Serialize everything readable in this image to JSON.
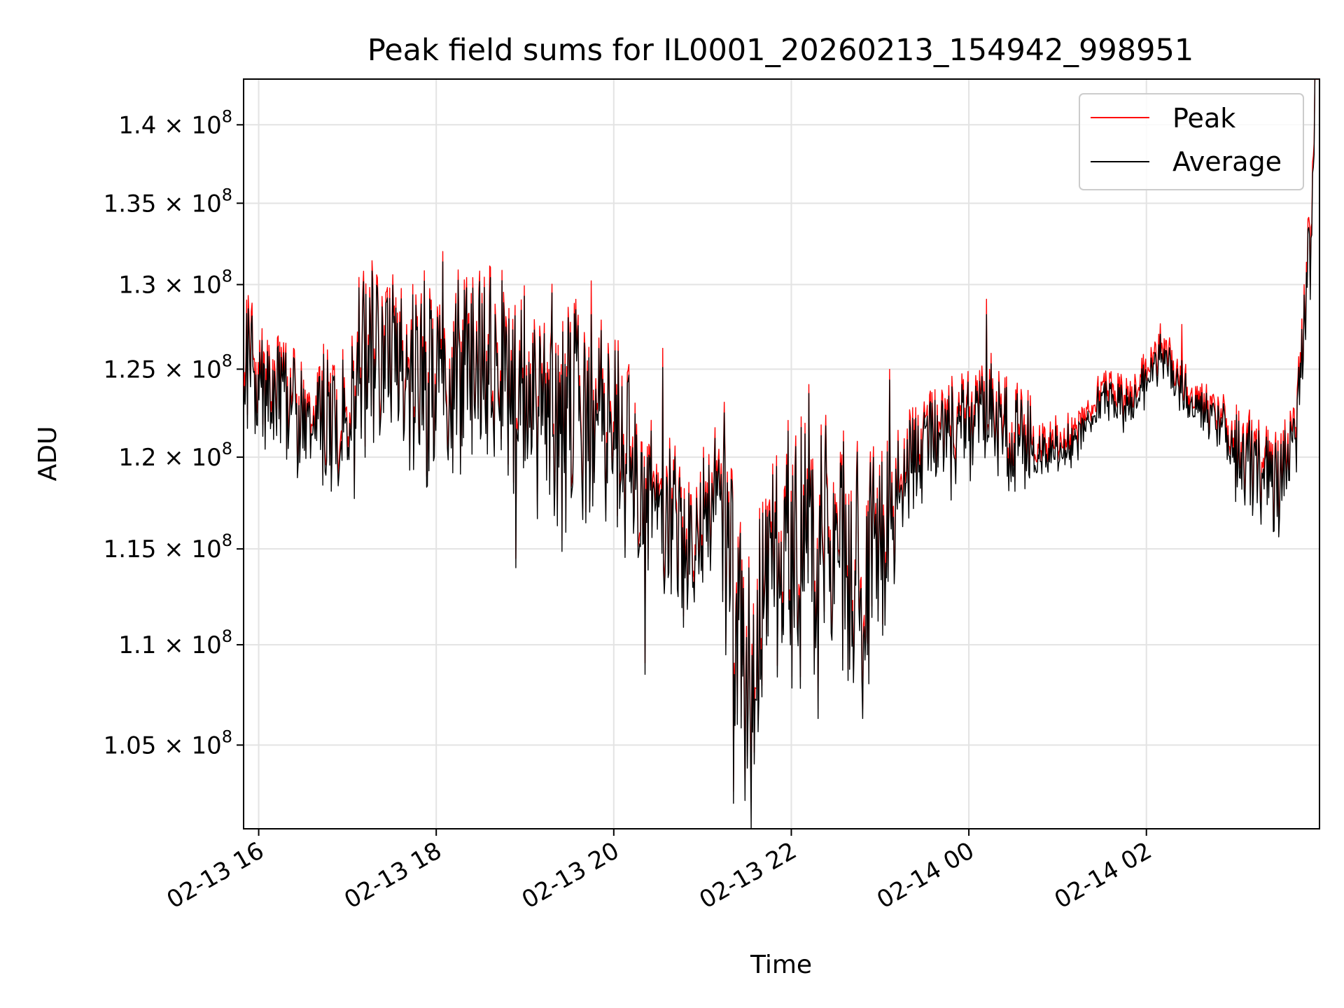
{
  "chart_data": {
    "type": "line",
    "title": "Peak field sums for IL0001_20260213_154942_998951",
    "xlabel": "Time",
    "ylabel": "ADU",
    "yscale": "log",
    "grid": true,
    "legend_position": "upper right",
    "xlim_hours": [
      15.83,
      3.95
    ],
    "ylim": [
      101000000,
      143000000
    ],
    "x_ticks": [
      {
        "hour": 16,
        "label": "02-13 16"
      },
      {
        "hour": 18,
        "label": "02-13 18"
      },
      {
        "hour": 20,
        "label": "02-13 20"
      },
      {
        "hour": 22,
        "label": "02-13 22"
      },
      {
        "hour": 24,
        "label": "02-14 00"
      },
      {
        "hour": 26,
        "label": "02-14 02"
      }
    ],
    "y_ticks": [
      {
        "value": 105000000,
        "mantissa": "1.05",
        "base": "× 10",
        "exp": "8"
      },
      {
        "value": 110000000,
        "mantissa": "1.1",
        "base": "× 10",
        "exp": "8"
      },
      {
        "value": 115000000,
        "mantissa": "1.15",
        "base": "× 10",
        "exp": "8"
      },
      {
        "value": 120000000,
        "mantissa": "1.2",
        "base": "× 10",
        "exp": "8"
      },
      {
        "value": 125000000,
        "mantissa": "1.25",
        "base": "× 10",
        "exp": "8"
      },
      {
        "value": 130000000,
        "mantissa": "1.3",
        "base": "× 10",
        "exp": "8"
      },
      {
        "value": 135000000,
        "mantissa": "1.35",
        "base": "× 10",
        "exp": "8"
      },
      {
        "value": 140000000,
        "mantissa": "1.4",
        "base": "× 10",
        "exp": "8"
      }
    ],
    "series": [
      {
        "name": "Peak",
        "color": "#ff0000",
        "x_hours": [
          15.83,
          16.17,
          16.5,
          16.83,
          17.17,
          17.5,
          17.83,
          18.17,
          18.5,
          18.83,
          19.17,
          19.5,
          19.83,
          20.17,
          20.5,
          20.83,
          21.17,
          21.5,
          21.83,
          22.17,
          22.5,
          22.83,
          23.17,
          23.5,
          23.83,
          24.17,
          24.5,
          24.83,
          25.17,
          25.5,
          25.83,
          26.17,
          26.5,
          26.83,
          27.17,
          27.5,
          27.83,
          27.95
        ],
        "values": [
          126000000,
          123500000,
          123000000,
          121800000,
          125000000,
          126500000,
          124500000,
          125500000,
          126000000,
          124500000,
          123000000,
          121500000,
          122500000,
          120500000,
          117000000,
          115000000,
          118000000,
          109000000,
          114500000,
          115500000,
          116000000,
          113000000,
          119000000,
          121000000,
          121500000,
          123000000,
          121500000,
          120500000,
          121000000,
          123500000,
          123000000,
          126000000,
          123000000,
          122000000,
          119500000,
          118500000,
          125500000,
          141500000
        ],
        "spikes": [
          {
            "hour": 17.45,
            "value": 129500000
          },
          {
            "hour": 18.6,
            "value": 130800000
          },
          {
            "hour": 19.3,
            "value": 129700000
          },
          {
            "hour": 19.75,
            "value": 129900000
          },
          {
            "hour": 20.55,
            "value": 125900000
          },
          {
            "hour": 22.2,
            "value": 123800000
          },
          {
            "hour": 24.2,
            "value": 128800000
          },
          {
            "hour": 26.4,
            "value": 127300000
          }
        ],
        "dips": [
          {
            "hour": 18.9,
            "value": 114200000
          },
          {
            "hour": 20.35,
            "value": 108800000
          },
          {
            "hour": 21.35,
            "value": 102500000
          },
          {
            "hour": 21.55,
            "value": 102000000
          },
          {
            "hour": 22.3,
            "value": 106500000
          },
          {
            "hour": 22.8,
            "value": 106500000
          },
          {
            "hour": 27.4,
            "value": 120500000
          }
        ]
      },
      {
        "name": "Average",
        "color": "#000000",
        "x_hours": [
          15.83,
          16.17,
          16.5,
          16.83,
          17.17,
          17.5,
          17.83,
          18.17,
          18.5,
          18.83,
          19.17,
          19.5,
          19.83,
          20.17,
          20.5,
          20.83,
          21.17,
          21.5,
          21.83,
          22.17,
          22.5,
          22.83,
          23.17,
          23.5,
          23.83,
          24.17,
          24.5,
          24.83,
          25.17,
          25.5,
          25.83,
          26.17,
          26.5,
          26.83,
          27.17,
          27.5,
          27.83,
          27.95
        ],
        "values": [
          125500000,
          123200000,
          122800000,
          121500000,
          124700000,
          126200000,
          124200000,
          125200000,
          125700000,
          124200000,
          122700000,
          121200000,
          122200000,
          120200000,
          116700000,
          114700000,
          117700000,
          108700000,
          114200000,
          115200000,
          115700000,
          112700000,
          118700000,
          120700000,
          121200000,
          122700000,
          121200000,
          120200000,
          120700000,
          123200000,
          122700000,
          125700000,
          122800000,
          121800000,
          119200000,
          118200000,
          125200000,
          141000000
        ],
        "spikes": [
          {
            "hour": 17.45,
            "value": 129200000
          },
          {
            "hour": 18.6,
            "value": 129300000
          },
          {
            "hour": 19.3,
            "value": 129500000
          },
          {
            "hour": 19.75,
            "value": 128200000
          },
          {
            "hour": 20.55,
            "value": 125100000
          },
          {
            "hour": 22.2,
            "value": 123600000
          },
          {
            "hour": 24.2,
            "value": 128200000
          },
          {
            "hour": 26.4,
            "value": 125500000
          }
        ],
        "dips": [
          {
            "hour": 18.9,
            "value": 114000000
          },
          {
            "hour": 20.35,
            "value": 108500000
          },
          {
            "hour": 21.35,
            "value": 102200000
          },
          {
            "hour": 21.55,
            "value": 101000000
          },
          {
            "hour": 22.3,
            "value": 106300000
          },
          {
            "hour": 22.8,
            "value": 106300000
          },
          {
            "hour": 27.4,
            "value": 120300000
          }
        ]
      }
    ]
  }
}
